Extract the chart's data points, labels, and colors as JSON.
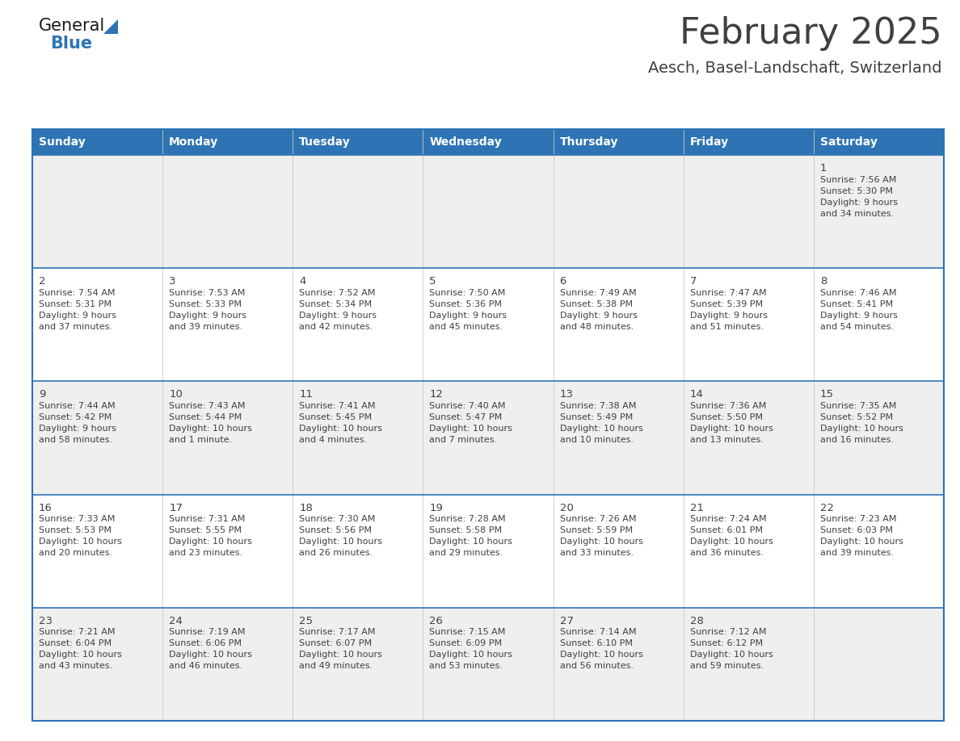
{
  "title": "February 2025",
  "subtitle": "Aesch, Basel-Landschaft, Switzerland",
  "days_of_week": [
    "Sunday",
    "Monday",
    "Tuesday",
    "Wednesday",
    "Thursday",
    "Friday",
    "Saturday"
  ],
  "header_bg": "#2E74B5",
  "header_text_color": "#FFFFFF",
  "cell_bg_odd": "#EFEFEF",
  "cell_bg_even": "#FFFFFF",
  "border_color": "#2E74B5",
  "title_color": "#404040",
  "subtitle_color": "#404040",
  "day_number_color": "#404040",
  "cell_text_color": "#404040",
  "calendar_data": [
    [
      {
        "day": null,
        "sunrise": null,
        "sunset": null,
        "daylight": null
      },
      {
        "day": null,
        "sunrise": null,
        "sunset": null,
        "daylight": null
      },
      {
        "day": null,
        "sunrise": null,
        "sunset": null,
        "daylight": null
      },
      {
        "day": null,
        "sunrise": null,
        "sunset": null,
        "daylight": null
      },
      {
        "day": null,
        "sunrise": null,
        "sunset": null,
        "daylight": null
      },
      {
        "day": null,
        "sunrise": null,
        "sunset": null,
        "daylight": null
      },
      {
        "day": 1,
        "sunrise": "7:56 AM",
        "sunset": "5:30 PM",
        "daylight_line1": "Daylight: 9 hours",
        "daylight_line2": "and 34 minutes."
      }
    ],
    [
      {
        "day": 2,
        "sunrise": "7:54 AM",
        "sunset": "5:31 PM",
        "daylight_line1": "Daylight: 9 hours",
        "daylight_line2": "and 37 minutes."
      },
      {
        "day": 3,
        "sunrise": "7:53 AM",
        "sunset": "5:33 PM",
        "daylight_line1": "Daylight: 9 hours",
        "daylight_line2": "and 39 minutes."
      },
      {
        "day": 4,
        "sunrise": "7:52 AM",
        "sunset": "5:34 PM",
        "daylight_line1": "Daylight: 9 hours",
        "daylight_line2": "and 42 minutes."
      },
      {
        "day": 5,
        "sunrise": "7:50 AM",
        "sunset": "5:36 PM",
        "daylight_line1": "Daylight: 9 hours",
        "daylight_line2": "and 45 minutes."
      },
      {
        "day": 6,
        "sunrise": "7:49 AM",
        "sunset": "5:38 PM",
        "daylight_line1": "Daylight: 9 hours",
        "daylight_line2": "and 48 minutes."
      },
      {
        "day": 7,
        "sunrise": "7:47 AM",
        "sunset": "5:39 PM",
        "daylight_line1": "Daylight: 9 hours",
        "daylight_line2": "and 51 minutes."
      },
      {
        "day": 8,
        "sunrise": "7:46 AM",
        "sunset": "5:41 PM",
        "daylight_line1": "Daylight: 9 hours",
        "daylight_line2": "and 54 minutes."
      }
    ],
    [
      {
        "day": 9,
        "sunrise": "7:44 AM",
        "sunset": "5:42 PM",
        "daylight_line1": "Daylight: 9 hours",
        "daylight_line2": "and 58 minutes."
      },
      {
        "day": 10,
        "sunrise": "7:43 AM",
        "sunset": "5:44 PM",
        "daylight_line1": "Daylight: 10 hours",
        "daylight_line2": "and 1 minute."
      },
      {
        "day": 11,
        "sunrise": "7:41 AM",
        "sunset": "5:45 PM",
        "daylight_line1": "Daylight: 10 hours",
        "daylight_line2": "and 4 minutes."
      },
      {
        "day": 12,
        "sunrise": "7:40 AM",
        "sunset": "5:47 PM",
        "daylight_line1": "Daylight: 10 hours",
        "daylight_line2": "and 7 minutes."
      },
      {
        "day": 13,
        "sunrise": "7:38 AM",
        "sunset": "5:49 PM",
        "daylight_line1": "Daylight: 10 hours",
        "daylight_line2": "and 10 minutes."
      },
      {
        "day": 14,
        "sunrise": "7:36 AM",
        "sunset": "5:50 PM",
        "daylight_line1": "Daylight: 10 hours",
        "daylight_line2": "and 13 minutes."
      },
      {
        "day": 15,
        "sunrise": "7:35 AM",
        "sunset": "5:52 PM",
        "daylight_line1": "Daylight: 10 hours",
        "daylight_line2": "and 16 minutes."
      }
    ],
    [
      {
        "day": 16,
        "sunrise": "7:33 AM",
        "sunset": "5:53 PM",
        "daylight_line1": "Daylight: 10 hours",
        "daylight_line2": "and 20 minutes."
      },
      {
        "day": 17,
        "sunrise": "7:31 AM",
        "sunset": "5:55 PM",
        "daylight_line1": "Daylight: 10 hours",
        "daylight_line2": "and 23 minutes."
      },
      {
        "day": 18,
        "sunrise": "7:30 AM",
        "sunset": "5:56 PM",
        "daylight_line1": "Daylight: 10 hours",
        "daylight_line2": "and 26 minutes."
      },
      {
        "day": 19,
        "sunrise": "7:28 AM",
        "sunset": "5:58 PM",
        "daylight_line1": "Daylight: 10 hours",
        "daylight_line2": "and 29 minutes."
      },
      {
        "day": 20,
        "sunrise": "7:26 AM",
        "sunset": "5:59 PM",
        "daylight_line1": "Daylight: 10 hours",
        "daylight_line2": "and 33 minutes."
      },
      {
        "day": 21,
        "sunrise": "7:24 AM",
        "sunset": "6:01 PM",
        "daylight_line1": "Daylight: 10 hours",
        "daylight_line2": "and 36 minutes."
      },
      {
        "day": 22,
        "sunrise": "7:23 AM",
        "sunset": "6:03 PM",
        "daylight_line1": "Daylight: 10 hours",
        "daylight_line2": "and 39 minutes."
      }
    ],
    [
      {
        "day": 23,
        "sunrise": "7:21 AM",
        "sunset": "6:04 PM",
        "daylight_line1": "Daylight: 10 hours",
        "daylight_line2": "and 43 minutes."
      },
      {
        "day": 24,
        "sunrise": "7:19 AM",
        "sunset": "6:06 PM",
        "daylight_line1": "Daylight: 10 hours",
        "daylight_line2": "and 46 minutes."
      },
      {
        "day": 25,
        "sunrise": "7:17 AM",
        "sunset": "6:07 PM",
        "daylight_line1": "Daylight: 10 hours",
        "daylight_line2": "and 49 minutes."
      },
      {
        "day": 26,
        "sunrise": "7:15 AM",
        "sunset": "6:09 PM",
        "daylight_line1": "Daylight: 10 hours",
        "daylight_line2": "and 53 minutes."
      },
      {
        "day": 27,
        "sunrise": "7:14 AM",
        "sunset": "6:10 PM",
        "daylight_line1": "Daylight: 10 hours",
        "daylight_line2": "and 56 minutes."
      },
      {
        "day": 28,
        "sunrise": "7:12 AM",
        "sunset": "6:12 PM",
        "daylight_line1": "Daylight: 10 hours",
        "daylight_line2": "and 59 minutes."
      },
      {
        "day": null,
        "sunrise": null,
        "sunset": null,
        "daylight_line1": null,
        "daylight_line2": null
      }
    ]
  ]
}
